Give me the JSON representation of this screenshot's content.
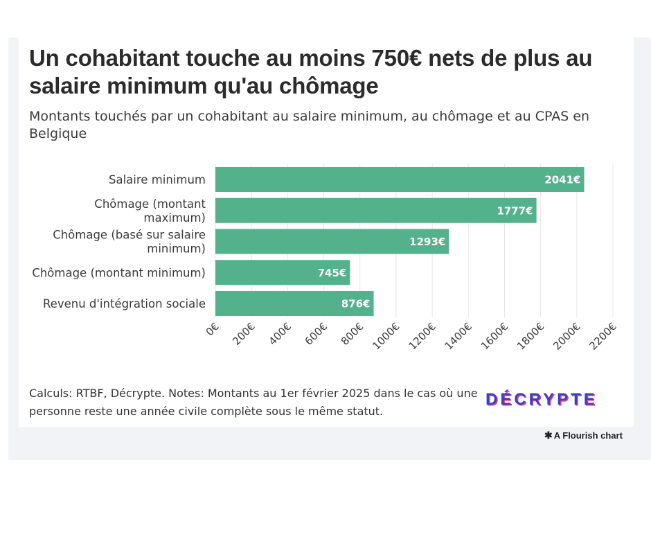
{
  "title": "Un cohabitant touche au moins 750€ nets de plus au salaire minimum qu'au chômage",
  "subtitle": "Montants touchés par un cohabitant au salaire minimum, au chômage et au CPAS en Belgique",
  "notes": "Calculs: RTBF, Décrypte. Notes: Montants au 1er février 2025 dans le cas où une personne reste une année civile complète sous le même statut.",
  "logo_text": "DÉCRYPTE",
  "credit": "A Flourish chart",
  "credit_icon": "flourish-asterisk-icon",
  "colors": {
    "bar": "#53b18c",
    "grid": "#e6e6e6",
    "logo": "#3b3fc6",
    "logo_shadow": "#e8427a"
  },
  "chart_data": {
    "type": "bar",
    "orientation": "horizontal",
    "categories": [
      [
        "Salaire minimum"
      ],
      [
        "Chômage (montant",
        "maximum)"
      ],
      [
        "Chômage (basé sur salaire",
        "minimum)"
      ],
      [
        "Chômage (montant minimum)"
      ],
      [
        "Revenu d'intégration sociale"
      ]
    ],
    "values": [
      2041,
      1777,
      1293,
      745,
      876
    ],
    "data_labels": [
      "2041€",
      "1777€",
      "1293€",
      "745€",
      "876€"
    ],
    "xlim": [
      0,
      2200
    ],
    "x_ticks": [
      0,
      200,
      400,
      600,
      800,
      1000,
      1200,
      1400,
      1600,
      1800,
      2000,
      2200
    ],
    "x_tick_labels": [
      "0€",
      "200€",
      "400€",
      "600€",
      "800€",
      "1000€",
      "1200€",
      "1400€",
      "1600€",
      "1800€",
      "2000€",
      "2200€"
    ],
    "grid": true,
    "xlabel": "",
    "ylabel": ""
  }
}
